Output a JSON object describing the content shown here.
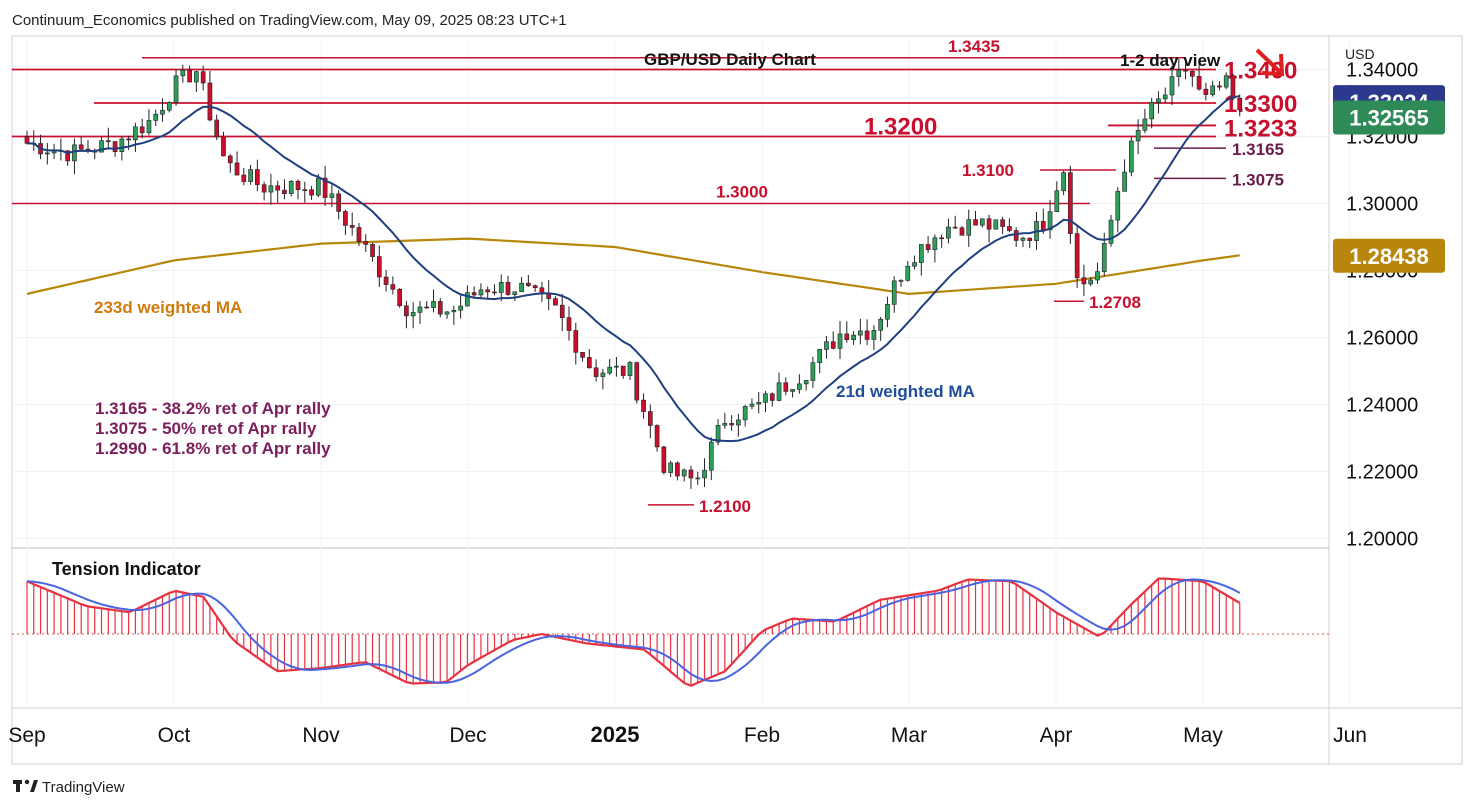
{
  "header": {
    "publisher": "Continuum_Economics published on TradingView.com, May 09, 2025 08:23 UTC+1"
  },
  "branding": {
    "label": "TradingView",
    "icon": "tradingview-logo-icon"
  },
  "currency": "USD",
  "colors": {
    "bull": "#2e9e5b",
    "bear": "#c8102e",
    "ma21": "#1f3f7f",
    "ma233": "#b8860b",
    "level": "#c8102e",
    "sub_level": "#6b1d4a",
    "tension_fill": "#e8323f",
    "tension_ma": "#4a63e0"
  },
  "chart_data": {
    "type": "candlestick",
    "title": "GBP/USD Daily Chart",
    "view_label": "1-2 day view",
    "view_arrow": "down-right-arrow-icon",
    "y_ticks": [
      "1.20000",
      "1.22000",
      "1.24000",
      "1.26000",
      "1.28000",
      "1.30000",
      "1.32000",
      "1.34000"
    ],
    "ylim": [
      1.1995,
      1.35
    ],
    "x_ticks": [
      {
        "label": "Sep",
        "month": "2024-09"
      },
      {
        "label": "Oct",
        "month": "2024-10"
      },
      {
        "label": "Nov",
        "month": "2024-11"
      },
      {
        "label": "Dec",
        "month": "2024-12"
      },
      {
        "label": "2025",
        "month": "2025-01",
        "bold": true
      },
      {
        "label": "Feb",
        "month": "2025-02"
      },
      {
        "label": "Mar",
        "month": "2025-03"
      },
      {
        "label": "Apr",
        "month": "2025-04"
      },
      {
        "label": "May",
        "month": "2025-05"
      },
      {
        "label": "Jun",
        "month": "2025-06"
      }
    ],
    "price_badges": [
      {
        "label": "1.33024",
        "value": 1.33024,
        "color": "#2b3a8c"
      },
      {
        "label": "1.32565",
        "value": 1.32565,
        "color": "#2e8b57"
      },
      {
        "label": "1.28438",
        "value": 1.28438,
        "color": "#b8860b"
      }
    ],
    "levels": [
      {
        "label": "1.3435",
        "value": 1.3435,
        "style": "small"
      },
      {
        "label": "1.3400",
        "value": 1.34,
        "style": "big"
      },
      {
        "label": "1.3300",
        "value": 1.33,
        "style": "big"
      },
      {
        "label": "1.3233",
        "value": 1.3233,
        "style": "big"
      },
      {
        "label": "1.3200",
        "value": 1.32,
        "style": "big"
      },
      {
        "label": "1.3165",
        "value": 1.3165,
        "style": "sub"
      },
      {
        "label": "1.3100",
        "value": 1.31,
        "style": "small"
      },
      {
        "label": "1.3075",
        "value": 1.3075,
        "style": "sub"
      },
      {
        "label": "1.3000",
        "value": 1.3,
        "style": "small"
      },
      {
        "label": "1.2708",
        "value": 1.2708,
        "style": "small"
      },
      {
        "label": "1.2100",
        "value": 1.21,
        "style": "small"
      }
    ],
    "annotations": {
      "ma233_label": "233d weighted MA",
      "ma21_label": "21d weighted MA",
      "retracements": [
        "1.3165 - 38.2% ret of Apr rally",
        "1.3075 - 50% ret of Apr rally",
        "1.2990 - 61.8% ret of Apr rally"
      ]
    },
    "indicator": {
      "title": "Tension Indicator",
      "description": "oscillator histogram with smoothed line, zero line dotted"
    },
    "close_path": [
      {
        "m": 0.0,
        "v": 1.318
      },
      {
        "m": 0.3,
        "v": 1.315
      },
      {
        "m": 0.6,
        "v": 1.318
      },
      {
        "m": 0.85,
        "v": 1.325
      },
      {
        "m": 1.0,
        "v": 1.335
      },
      {
        "m": 1.15,
        "v": 1.34
      },
      {
        "m": 1.35,
        "v": 1.312
      },
      {
        "m": 1.6,
        "v": 1.305
      },
      {
        "m": 2.0,
        "v": 1.305
      },
      {
        "m": 2.2,
        "v": 1.293
      },
      {
        "m": 2.4,
        "v": 1.28
      },
      {
        "m": 2.6,
        "v": 1.268
      },
      {
        "m": 2.9,
        "v": 1.268
      },
      {
        "m": 3.1,
        "v": 1.275
      },
      {
        "m": 3.35,
        "v": 1.275
      },
      {
        "m": 3.6,
        "v": 1.268
      },
      {
        "m": 3.85,
        "v": 1.25
      },
      {
        "m": 4.1,
        "v": 1.25
      },
      {
        "m": 4.35,
        "v": 1.22
      },
      {
        "m": 4.55,
        "v": 1.217
      },
      {
        "m": 4.75,
        "v": 1.236
      },
      {
        "m": 5.0,
        "v": 1.24
      },
      {
        "m": 5.1,
        "v": 1.244
      },
      {
        "m": 5.3,
        "v": 1.25
      },
      {
        "m": 5.55,
        "v": 1.262
      },
      {
        "m": 5.75,
        "v": 1.262
      },
      {
        "m": 6.0,
        "v": 1.284
      },
      {
        "m": 6.25,
        "v": 1.293
      },
      {
        "m": 6.5,
        "v": 1.294
      },
      {
        "m": 6.75,
        "v": 1.29
      },
      {
        "m": 6.9,
        "v": 1.293
      },
      {
        "m": 7.05,
        "v": 1.311
      },
      {
        "m": 7.15,
        "v": 1.275
      },
      {
        "m": 7.3,
        "v": 1.28
      },
      {
        "m": 7.45,
        "v": 1.31
      },
      {
        "m": 7.6,
        "v": 1.325
      },
      {
        "m": 7.75,
        "v": 1.333
      },
      {
        "m": 7.9,
        "v": 1.341
      },
      {
        "m": 8.0,
        "v": 1.33
      },
      {
        "m": 8.15,
        "v": 1.336
      },
      {
        "m": 8.25,
        "v": 1.326
      }
    ]
  }
}
